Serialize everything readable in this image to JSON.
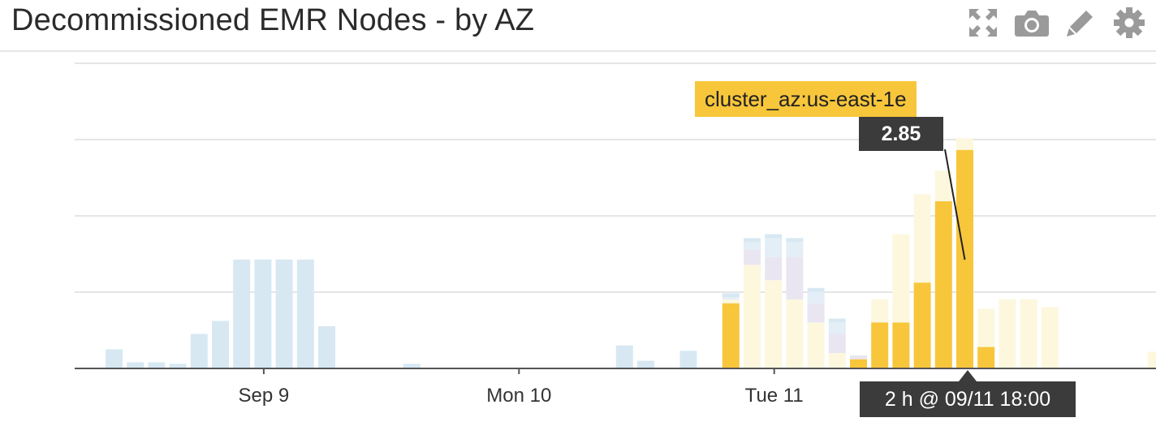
{
  "widget": {
    "title": "Decommissioned EMR Nodes - by AZ",
    "toolbar": [
      {
        "name": "expand",
        "icon": "expand-icon"
      },
      {
        "name": "snapshot",
        "icon": "camera-icon"
      },
      {
        "name": "edit",
        "icon": "pencil-icon"
      },
      {
        "name": "settings",
        "icon": "gear-icon"
      }
    ]
  },
  "colors": {
    "blue": "#d7e8f3",
    "yellow": "#f7c63b",
    "faint_yellow": "#fdf7de",
    "faint_blue": "#e3eef6",
    "lavender": "#e9e6f2",
    "axis": "#555555",
    "grid": "#e5e5e5",
    "icon": "#9a9a9a"
  },
  "tooltip": {
    "series": "cluster_az:us-east-1e",
    "value": "2.85",
    "time": "2 h @ 09/11 18:00"
  },
  "chart_data": {
    "type": "bar",
    "stacked": true,
    "interval": "2 h",
    "x_start": "09/08 10:00",
    "x_ticks": [
      "Sep 9",
      "Mon 10",
      "Tue 11"
    ],
    "ylim": [
      0,
      4
    ],
    "grid": true,
    "highlighted_series": "cluster_az:us-east-1e",
    "series": [
      {
        "name": "cluster_az:us-east-1e",
        "color": "yellow",
        "points": [
          {
            "i": 29,
            "v": 0.85
          },
          {
            "i": 35,
            "v": 0.12
          },
          {
            "i": 36,
            "v": 0.6
          },
          {
            "i": 37,
            "v": 0.6
          },
          {
            "i": 38,
            "v": 1.12
          },
          {
            "i": 39,
            "v": 2.18
          },
          {
            "i": 40,
            "v": 2.85
          },
          {
            "i": 41,
            "v": 0.28
          }
        ]
      },
      {
        "color": "faint_yellow",
        "points": [
          {
            "i": 29,
            "v": 0.05
          },
          {
            "i": 30,
            "v": 1.35
          },
          {
            "i": 31,
            "v": 1.15
          },
          {
            "i": 32,
            "v": 0.9
          },
          {
            "i": 33,
            "v": 0.6
          },
          {
            "i": 34,
            "v": 0.2
          },
          {
            "i": 36,
            "v": 0.3
          },
          {
            "i": 37,
            "v": 1.15
          },
          {
            "i": 38,
            "v": 1.15
          },
          {
            "i": 39,
            "v": 0.4
          },
          {
            "i": 40,
            "v": 0.15
          },
          {
            "i": 41,
            "v": 0.5
          },
          {
            "i": 42,
            "v": 0.9
          },
          {
            "i": 43,
            "v": 0.9
          },
          {
            "i": 44,
            "v": 0.8
          },
          {
            "i": 49,
            "v": 0.22
          }
        ]
      },
      {
        "color": "lavender",
        "points": [
          {
            "i": 30,
            "v": 0.2
          },
          {
            "i": 31,
            "v": 0.3
          },
          {
            "i": 32,
            "v": 0.55
          },
          {
            "i": 33,
            "v": 0.25
          },
          {
            "i": 34,
            "v": 0.25
          },
          {
            "i": 35,
            "v": 0.05
          }
        ]
      },
      {
        "color": "faint_blue",
        "points": [
          {
            "i": 29,
            "v": 0.03
          },
          {
            "i": 30,
            "v": 0.1
          },
          {
            "i": 31,
            "v": 0.25
          },
          {
            "i": 32,
            "v": 0.2
          },
          {
            "i": 33,
            "v": 0.15
          },
          {
            "i": 34,
            "v": 0.15
          }
        ]
      },
      {
        "color": "blue",
        "points": [
          {
            "i": 0,
            "v": 0.25
          },
          {
            "i": 1,
            "v": 0.08
          },
          {
            "i": 2,
            "v": 0.08
          },
          {
            "i": 3,
            "v": 0.06
          },
          {
            "i": 4,
            "v": 0.45
          },
          {
            "i": 5,
            "v": 0.62
          },
          {
            "i": 6,
            "v": 1.42
          },
          {
            "i": 7,
            "v": 1.42
          },
          {
            "i": 8,
            "v": 1.42
          },
          {
            "i": 9,
            "v": 1.42
          },
          {
            "i": 10,
            "v": 0.55
          },
          {
            "i": 14,
            "v": 0.06
          },
          {
            "i": 24,
            "v": 0.3
          },
          {
            "i": 25,
            "v": 0.1
          },
          {
            "i": 27,
            "v": 0.23
          },
          {
            "i": 29,
            "v": 0.05
          },
          {
            "i": 30,
            "v": 0.05
          },
          {
            "i": 31,
            "v": 0.05
          },
          {
            "i": 32,
            "v": 0.05
          },
          {
            "i": 33,
            "v": 0.05
          },
          {
            "i": 34,
            "v": 0.05
          }
        ]
      }
    ]
  }
}
